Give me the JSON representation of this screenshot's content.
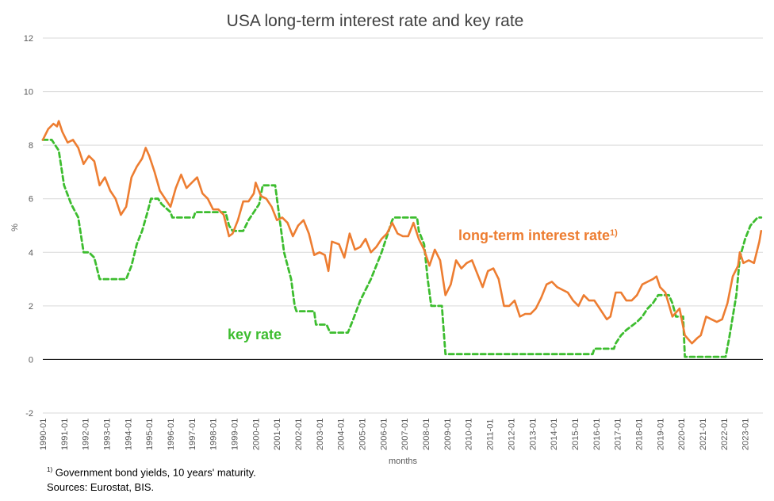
{
  "chart_data": {
    "type": "line",
    "title": "USA long-term interest rate and key rate",
    "xlabel": "months",
    "ylabel": "%",
    "ylim": [
      -2,
      12
    ],
    "yticks": [
      -2,
      0,
      2,
      4,
      6,
      8,
      10,
      12
    ],
    "xtick_labels": [
      "1990-01",
      "1991-01",
      "1992-01",
      "1993-01",
      "1994-01",
      "1995-01",
      "1996-01",
      "1997-01",
      "1998-01",
      "1999-01",
      "2000-01",
      "2001-01",
      "2002-01",
      "2003-01",
      "2004-01",
      "2005-01",
      "2006-01",
      "2007-01",
      "2008-01",
      "2009-01",
      "2010-01",
      "2011-01",
      "2012-01",
      "2013-01",
      "2014-01",
      "2015-01",
      "2016-01",
      "2017-01",
      "2018-01",
      "2019-01",
      "2020-01",
      "2021-01",
      "2022-01",
      "2023-01"
    ],
    "grid": "horizontal",
    "legend": "none",
    "series": [
      {
        "name": "long-term interest rate",
        "name_sup": "1)",
        "color": "#ED7D31",
        "style": "solid",
        "points": [
          [
            "1990-01",
            8.2
          ],
          [
            "1990-04",
            8.6
          ],
          [
            "1990-07",
            8.8
          ],
          [
            "1990-09",
            8.7
          ],
          [
            "1990-10",
            8.9
          ],
          [
            "1990-12",
            8.5
          ],
          [
            "1991-03",
            8.1
          ],
          [
            "1991-06",
            8.2
          ],
          [
            "1991-09",
            7.9
          ],
          [
            "1991-12",
            7.3
          ],
          [
            "1992-03",
            7.6
          ],
          [
            "1992-06",
            7.4
          ],
          [
            "1992-09",
            6.5
          ],
          [
            "1992-12",
            6.8
          ],
          [
            "1993-03",
            6.3
          ],
          [
            "1993-06",
            6.0
          ],
          [
            "1993-09",
            5.4
          ],
          [
            "1993-12",
            5.7
          ],
          [
            "1994-03",
            6.8
          ],
          [
            "1994-06",
            7.2
          ],
          [
            "1994-09",
            7.5
          ],
          [
            "1994-11",
            7.9
          ],
          [
            "1995-01",
            7.6
          ],
          [
            "1995-04",
            7.0
          ],
          [
            "1995-07",
            6.3
          ],
          [
            "1995-10",
            6.0
          ],
          [
            "1996-01",
            5.7
          ],
          [
            "1996-04",
            6.4
          ],
          [
            "1996-07",
            6.9
          ],
          [
            "1996-10",
            6.4
          ],
          [
            "1997-01",
            6.6
          ],
          [
            "1997-04",
            6.8
          ],
          [
            "1997-07",
            6.2
          ],
          [
            "1997-10",
            6.0
          ],
          [
            "1998-01",
            5.6
          ],
          [
            "1998-04",
            5.6
          ],
          [
            "1998-07",
            5.4
          ],
          [
            "1998-10",
            4.6
          ],
          [
            "1998-12",
            4.7
          ],
          [
            "1999-03",
            5.2
          ],
          [
            "1999-06",
            5.9
          ],
          [
            "1999-09",
            5.9
          ],
          [
            "1999-12",
            6.2
          ],
          [
            "2000-01",
            6.6
          ],
          [
            "2000-04",
            6.1
          ],
          [
            "2000-07",
            6.0
          ],
          [
            "2000-10",
            5.7
          ],
          [
            "2001-01",
            5.2
          ],
          [
            "2001-04",
            5.3
          ],
          [
            "2001-07",
            5.1
          ],
          [
            "2001-10",
            4.6
          ],
          [
            "2002-01",
            5.0
          ],
          [
            "2002-04",
            5.2
          ],
          [
            "2002-07",
            4.7
          ],
          [
            "2002-10",
            3.9
          ],
          [
            "2003-01",
            4.0
          ],
          [
            "2003-04",
            3.9
          ],
          [
            "2003-06",
            3.3
          ],
          [
            "2003-08",
            4.4
          ],
          [
            "2003-12",
            4.3
          ],
          [
            "2004-03",
            3.8
          ],
          [
            "2004-06",
            4.7
          ],
          [
            "2004-09",
            4.1
          ],
          [
            "2004-12",
            4.2
          ],
          [
            "2005-03",
            4.5
          ],
          [
            "2005-06",
            4.0
          ],
          [
            "2005-09",
            4.2
          ],
          [
            "2005-12",
            4.5
          ],
          [
            "2006-03",
            4.7
          ],
          [
            "2006-06",
            5.1
          ],
          [
            "2006-09",
            4.7
          ],
          [
            "2006-12",
            4.6
          ],
          [
            "2007-03",
            4.6
          ],
          [
            "2007-06",
            5.1
          ],
          [
            "2007-09",
            4.5
          ],
          [
            "2007-12",
            4.1
          ],
          [
            "2008-03",
            3.5
          ],
          [
            "2008-06",
            4.1
          ],
          [
            "2008-09",
            3.7
          ],
          [
            "2008-12",
            2.4
          ],
          [
            "2009-03",
            2.8
          ],
          [
            "2009-06",
            3.7
          ],
          [
            "2009-09",
            3.4
          ],
          [
            "2009-12",
            3.6
          ],
          [
            "2010-03",
            3.7
          ],
          [
            "2010-06",
            3.2
          ],
          [
            "2010-09",
            2.7
          ],
          [
            "2010-12",
            3.3
          ],
          [
            "2011-03",
            3.4
          ],
          [
            "2011-06",
            3.0
          ],
          [
            "2011-09",
            2.0
          ],
          [
            "2011-12",
            2.0
          ],
          [
            "2012-03",
            2.2
          ],
          [
            "2012-06",
            1.6
          ],
          [
            "2012-09",
            1.7
          ],
          [
            "2012-12",
            1.7
          ],
          [
            "2013-03",
            1.9
          ],
          [
            "2013-06",
            2.3
          ],
          [
            "2013-09",
            2.8
          ],
          [
            "2013-12",
            2.9
          ],
          [
            "2014-03",
            2.7
          ],
          [
            "2014-06",
            2.6
          ],
          [
            "2014-09",
            2.5
          ],
          [
            "2014-12",
            2.2
          ],
          [
            "2015-03",
            2.0
          ],
          [
            "2015-06",
            2.4
          ],
          [
            "2015-09",
            2.2
          ],
          [
            "2015-12",
            2.2
          ],
          [
            "2016-03",
            1.9
          ],
          [
            "2016-07",
            1.5
          ],
          [
            "2016-09",
            1.6
          ],
          [
            "2016-12",
            2.5
          ],
          [
            "2017-03",
            2.5
          ],
          [
            "2017-06",
            2.2
          ],
          [
            "2017-09",
            2.2
          ],
          [
            "2017-12",
            2.4
          ],
          [
            "2018-03",
            2.8
          ],
          [
            "2018-06",
            2.9
          ],
          [
            "2018-09",
            3.0
          ],
          [
            "2018-11",
            3.1
          ],
          [
            "2019-01",
            2.7
          ],
          [
            "2019-04",
            2.5
          ],
          [
            "2019-08",
            1.6
          ],
          [
            "2019-12",
            1.9
          ],
          [
            "2020-03",
            0.9
          ],
          [
            "2020-07",
            0.6
          ],
          [
            "2020-10",
            0.8
          ],
          [
            "2020-12",
            0.9
          ],
          [
            "2021-03",
            1.6
          ],
          [
            "2021-06",
            1.5
          ],
          [
            "2021-09",
            1.4
          ],
          [
            "2021-12",
            1.5
          ],
          [
            "2022-03",
            2.1
          ],
          [
            "2022-06",
            3.1
          ],
          [
            "2022-09",
            3.5
          ],
          [
            "2022-10",
            4.0
          ],
          [
            "2022-12",
            3.6
          ],
          [
            "2023-03",
            3.7
          ],
          [
            "2023-06",
            3.6
          ],
          [
            "2023-09",
            4.4
          ],
          [
            "2023-10",
            4.8
          ]
        ]
      },
      {
        "name": "key rate",
        "color": "#3DBD2F",
        "style": "dashed",
        "points": [
          [
            "1990-01",
            8.2
          ],
          [
            "1990-06",
            8.2
          ],
          [
            "1990-10",
            7.8
          ],
          [
            "1991-01",
            6.5
          ],
          [
            "1991-05",
            5.8
          ],
          [
            "1991-09",
            5.3
          ],
          [
            "1991-12",
            4.0
          ],
          [
            "1992-03",
            4.0
          ],
          [
            "1992-06",
            3.8
          ],
          [
            "1992-09",
            3.0
          ],
          [
            "1993-12",
            3.0
          ],
          [
            "1994-03",
            3.5
          ],
          [
            "1994-06",
            4.3
          ],
          [
            "1994-09",
            4.8
          ],
          [
            "1994-12",
            5.5
          ],
          [
            "1995-02",
            6.0
          ],
          [
            "1995-06",
            6.0
          ],
          [
            "1995-08",
            5.8
          ],
          [
            "1996-01",
            5.5
          ],
          [
            "1996-02",
            5.3
          ],
          [
            "1997-02",
            5.3
          ],
          [
            "1997-03",
            5.5
          ],
          [
            "1998-08",
            5.5
          ],
          [
            "1998-10",
            5.0
          ],
          [
            "1998-12",
            4.8
          ],
          [
            "1999-06",
            4.8
          ],
          [
            "1999-09",
            5.2
          ],
          [
            "1999-12",
            5.5
          ],
          [
            "2000-03",
            5.8
          ],
          [
            "2000-05",
            6.5
          ],
          [
            "2000-12",
            6.5
          ],
          [
            "2001-03",
            5.0
          ],
          [
            "2001-05",
            4.0
          ],
          [
            "2001-09",
            3.0
          ],
          [
            "2001-11",
            2.0
          ],
          [
            "2001-12",
            1.8
          ],
          [
            "2002-10",
            1.8
          ],
          [
            "2002-11",
            1.3
          ],
          [
            "2003-05",
            1.3
          ],
          [
            "2003-07",
            1.0
          ],
          [
            "2004-05",
            1.0
          ],
          [
            "2004-08",
            1.5
          ],
          [
            "2004-12",
            2.2
          ],
          [
            "2005-06",
            3.0
          ],
          [
            "2005-12",
            4.0
          ],
          [
            "2006-06",
            5.2
          ],
          [
            "2006-07",
            5.3
          ],
          [
            "2007-08",
            5.3
          ],
          [
            "2007-09",
            4.8
          ],
          [
            "2007-12",
            4.3
          ],
          [
            "2008-02",
            3.0
          ],
          [
            "2008-04",
            2.0
          ],
          [
            "2008-10",
            2.0
          ],
          [
            "2008-12",
            0.2
          ],
          [
            "2015-11",
            0.2
          ],
          [
            "2015-12",
            0.4
          ],
          [
            "2016-11",
            0.4
          ],
          [
            "2016-12",
            0.6
          ],
          [
            "2017-03",
            0.9
          ],
          [
            "2017-06",
            1.1
          ],
          [
            "2017-12",
            1.4
          ],
          [
            "2018-03",
            1.6
          ],
          [
            "2018-06",
            1.9
          ],
          [
            "2018-09",
            2.1
          ],
          [
            "2018-12",
            2.4
          ],
          [
            "2019-06",
            2.4
          ],
          [
            "2019-08",
            2.1
          ],
          [
            "2019-10",
            1.6
          ],
          [
            "2020-02",
            1.6
          ],
          [
            "2020-03",
            0.1
          ],
          [
            "2022-02",
            0.1
          ],
          [
            "2022-04",
            0.8
          ],
          [
            "2022-06",
            1.6
          ],
          [
            "2022-08",
            2.4
          ],
          [
            "2022-10",
            3.8
          ],
          [
            "2023-01",
            4.5
          ],
          [
            "2023-04",
            5.0
          ],
          [
            "2023-08",
            5.3
          ],
          [
            "2023-10",
            5.3
          ]
        ]
      }
    ]
  },
  "footnotes": {
    "note_mark": "1)",
    "note_text": "Government bond yields, 10 years' maturity.",
    "sources": "Sources: Eurostat, BIS."
  }
}
